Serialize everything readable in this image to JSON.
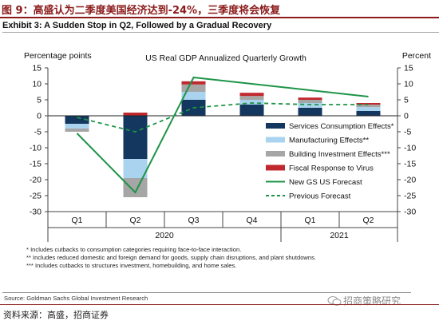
{
  "header": {
    "figure_title": "图 9：高盛认为二季度美国经济达到-24%，三季度将会恢复",
    "exhibit_title": "Exhibit 3: A Sudden Stop in Q2, Followed by a Gradual Recovery"
  },
  "chart_data": {
    "type": "bar",
    "title": "US Real GDP Annualized Quarterly Growth",
    "left_axis_label": "Percentage points",
    "right_axis_label": "Percent",
    "ylim": [
      -30,
      15
    ],
    "yticks": [
      15,
      10,
      5,
      0,
      -5,
      -10,
      -15,
      -20,
      -25,
      -30
    ],
    "categories": [
      "Q1",
      "Q2",
      "Q3",
      "Q4",
      "Q1",
      "Q2"
    ],
    "year_labels": [
      "2020",
      "2021"
    ],
    "stacked": true,
    "series": [
      {
        "name": "Services Consumption Effects*",
        "color": "#13375E",
        "values": [
          -2.5,
          -13.5,
          5.0,
          3.5,
          2.5,
          1.5
        ]
      },
      {
        "name": "Manufacturing Effects**",
        "color": "#A9D3EE",
        "values": [
          -1.5,
          -6.0,
          2.5,
          1.5,
          1.5,
          1.2
        ]
      },
      {
        "name": "Building Investment Effects***",
        "color": "#A6A6A6",
        "values": [
          -1.0,
          -6.0,
          2.3,
          1.2,
          1.0,
          0.8
        ]
      },
      {
        "name": "Fiscal Response to Virus",
        "color": "#C0282E",
        "values": [
          0.0,
          1.0,
          1.0,
          1.0,
          0.7,
          0.5
        ]
      }
    ],
    "line_series": [
      {
        "name": "New GS US Forecast",
        "color": "#1E9448",
        "style": "solid",
        "values": [
          -5.5,
          -24.0,
          12.0,
          10.0,
          8.0,
          6.0
        ]
      },
      {
        "name": "Previous Forecast",
        "color": "#1E9448",
        "style": "dashed",
        "values": [
          -0.5,
          -5.0,
          2.5,
          4.0,
          3.5,
          3.5
        ]
      }
    ],
    "legend_position": "right",
    "grid": false
  },
  "footnotes": [
    "* Includes cutbacks to consumption categories requiring face-to-face interaction.",
    "** Includes reduced domestic and foreign demand for goods, supply chain disruptions, and plant shutdowns.",
    "*** Includes cutbacks to structures investment, homebuilding, and home sales."
  ],
  "source": "Source: Goldman Sachs Global Investment Research",
  "data_source": "资料来源：高盛，招商证券",
  "watermark": "招商策略研究"
}
